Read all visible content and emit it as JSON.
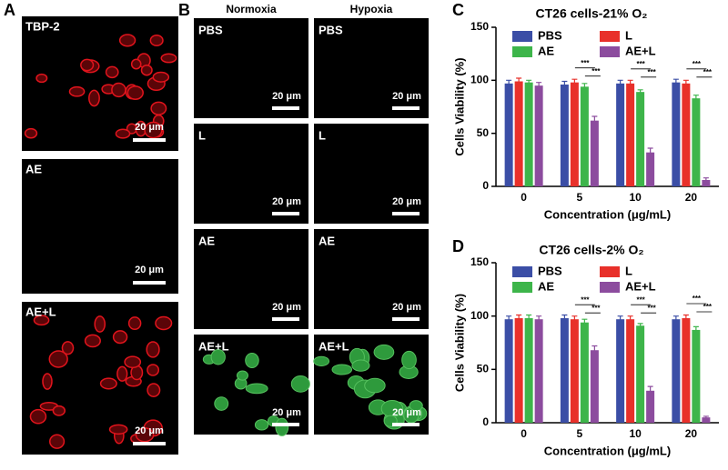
{
  "panels": {
    "A": {
      "label": "A",
      "images": [
        "TBP-2",
        "AE",
        "AE+L"
      ],
      "scale": "20 μm"
    },
    "B": {
      "label": "B",
      "columns": [
        "Normoxia",
        "Hypoxia"
      ],
      "rows": [
        "PBS",
        "L",
        "AE",
        "AE+L"
      ],
      "scale": "20 μm"
    }
  },
  "chart_data": [
    {
      "type": "bar",
      "panel": "C",
      "title": "CT26 cells-21% O₂",
      "x_label": "Concentration (μg/mL)",
      "y_label": "Cells Viability (%)",
      "categories": [
        "0",
        "5",
        "10",
        "20"
      ],
      "series": [
        {
          "name": "PBS",
          "color": "#3b4ea6",
          "values": [
            97,
            96,
            97,
            98
          ],
          "errors": [
            3,
            3,
            3,
            3
          ]
        },
        {
          "name": "L",
          "color": "#e8302a",
          "values": [
            99,
            98,
            97,
            97
          ],
          "errors": [
            3,
            3,
            3,
            3
          ]
        },
        {
          "name": "AE",
          "color": "#3db54a",
          "values": [
            98,
            94,
            89,
            83
          ],
          "errors": [
            2,
            3,
            2,
            3
          ]
        },
        {
          "name": "AE+L",
          "color": "#8c4c9e",
          "values": [
            95,
            62,
            32,
            6
          ],
          "errors": [
            3,
            4,
            4,
            2
          ]
        }
      ],
      "significance": "***",
      "ylim": [
        0,
        150
      ],
      "yticks": [
        0,
        50,
        100,
        150
      ]
    },
    {
      "type": "bar",
      "panel": "D",
      "title": "CT26 cells-2% O₂",
      "x_label": "Concentration (μg/mL)",
      "y_label": "Cells Viability (%)",
      "categories": [
        "0",
        "5",
        "10",
        "20"
      ],
      "series": [
        {
          "name": "PBS",
          "color": "#3b4ea6",
          "values": [
            97,
            98,
            97,
            97
          ],
          "errors": [
            3,
            3,
            3,
            3
          ]
        },
        {
          "name": "L",
          "color": "#e8302a",
          "values": [
            98,
            97,
            97,
            98
          ],
          "errors": [
            3,
            3,
            3,
            3
          ]
        },
        {
          "name": "AE",
          "color": "#3db54a",
          "values": [
            98,
            94,
            91,
            87
          ],
          "errors": [
            3,
            3,
            2,
            3
          ]
        },
        {
          "name": "AE+L",
          "color": "#8c4c9e",
          "values": [
            97,
            68,
            30,
            5
          ],
          "errors": [
            3,
            4,
            4,
            1
          ]
        }
      ],
      "significance": "***",
      "ylim": [
        0,
        150
      ],
      "yticks": [
        0,
        50,
        100,
        150
      ]
    }
  ]
}
